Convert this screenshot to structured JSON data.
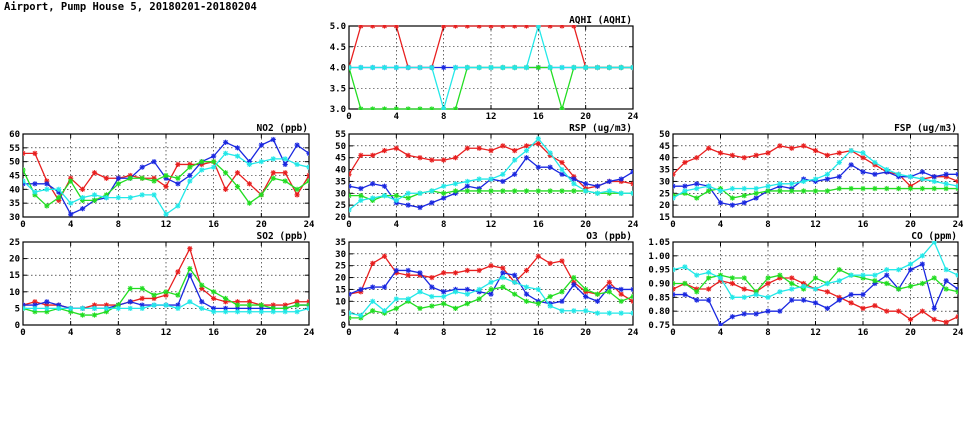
{
  "page": {
    "title": "Airport, Pump House 5, 20180201-20180204"
  },
  "colors": {
    "day1": "#e81f1f",
    "day2": "#1a28e0",
    "day3": "#22dd22",
    "day4": "#22e8e8"
  },
  "chart_data": [
    {
      "id": "aqhi",
      "type": "line",
      "title": "AQHI (AQHI)",
      "xlim": [
        0,
        24
      ],
      "xticks": [
        0,
        4,
        8,
        12,
        16,
        20,
        24
      ],
      "ylim": [
        3.0,
        5.0
      ],
      "yticks": [
        "3.0",
        "3.5",
        "4.0",
        "4.5",
        "5.0"
      ],
      "grid": true,
      "series": [
        {
          "color": "#e81f1f",
          "values": [
            4,
            5,
            5,
            5,
            5,
            4,
            4,
            4,
            5,
            5,
            5,
            5,
            5,
            5,
            5,
            5,
            5,
            5,
            5,
            5,
            4,
            4,
            4,
            4,
            4
          ]
        },
        {
          "color": "#1a28e0",
          "values": [
            4,
            4,
            4,
            4,
            4,
            4,
            4,
            4,
            4,
            4,
            4,
            4,
            4,
            4,
            4,
            4,
            4,
            4,
            4,
            4,
            4,
            4,
            4,
            4,
            4
          ]
        },
        {
          "color": "#22dd22",
          "values": [
            4,
            3,
            3,
            3,
            3,
            3,
            3,
            3,
            3,
            3,
            4,
            4,
            4,
            4,
            4,
            4,
            4,
            4,
            3,
            4,
            4,
            4,
            4,
            4,
            4
          ]
        },
        {
          "color": "#22e8e8",
          "values": [
            4,
            4,
            4,
            4,
            4,
            4,
            4,
            4,
            3,
            4,
            4,
            4,
            4,
            4,
            4,
            4,
            5,
            4,
            4,
            4,
            4,
            4,
            4,
            4,
            4
          ]
        }
      ]
    },
    {
      "id": "no2",
      "type": "line",
      "title": "NO2 (ppb)",
      "xlim": [
        0,
        24
      ],
      "xticks": [
        0,
        4,
        8,
        12,
        16,
        20,
        24
      ],
      "ylim": [
        30,
        60
      ],
      "yticks": [
        "30",
        "35",
        "40",
        "45",
        "50",
        "55",
        "60"
      ],
      "grid": true,
      "series": [
        {
          "color": "#e81f1f",
          "values": [
            53,
            53,
            43,
            36,
            44,
            40,
            46,
            44,
            44,
            45,
            44,
            44,
            41,
            49,
            49,
            49,
            50,
            40,
            46,
            42,
            38,
            46,
            46,
            38,
            45
          ]
        },
        {
          "color": "#1a28e0",
          "values": [
            42,
            42,
            42,
            39,
            31,
            33,
            36,
            37,
            44,
            44,
            48,
            50,
            44,
            42,
            45,
            50,
            52,
            57,
            55,
            50,
            56,
            58,
            49,
            56,
            53
          ]
        },
        {
          "color": "#22dd22",
          "values": [
            47,
            38,
            34,
            37,
            43,
            36,
            36,
            38,
            42,
            44,
            44,
            43,
            45,
            44,
            48,
            50,
            50,
            46,
            41,
            35,
            38,
            44,
            43,
            40,
            43
          ]
        },
        {
          "color": "#22e8e8",
          "values": [
            43,
            39,
            40,
            40,
            35,
            37,
            38,
            37,
            37,
            37,
            38,
            38,
            31,
            34,
            43,
            47,
            48,
            53,
            52,
            49,
            50,
            51,
            51,
            49,
            48
          ]
        }
      ]
    },
    {
      "id": "rsp",
      "type": "line",
      "title": "RSP (ug/m3)",
      "xlim": [
        0,
        24
      ],
      "xticks": [
        0,
        4,
        8,
        12,
        16,
        20,
        24
      ],
      "ylim": [
        20,
        55
      ],
      "yticks": [
        "20",
        "25",
        "30",
        "35",
        "40",
        "45",
        "50",
        "55"
      ],
      "grid": true,
      "series": [
        {
          "color": "#e81f1f",
          "values": [
            38,
            46,
            46,
            48,
            49,
            46,
            45,
            44,
            44,
            45,
            49,
            49,
            48,
            50,
            48,
            50,
            51,
            46,
            43,
            37,
            32,
            33,
            35,
            35,
            34
          ]
        },
        {
          "color": "#1a28e0",
          "values": [
            33,
            32,
            34,
            33,
            26,
            25,
            24,
            26,
            28,
            30,
            33,
            32,
            36,
            35,
            38,
            45,
            41,
            41,
            38,
            36,
            34,
            33,
            35,
            36,
            39
          ]
        },
        {
          "color": "#22dd22",
          "values": [
            29,
            29,
            27,
            29,
            29,
            28,
            30,
            31,
            30,
            31,
            31,
            31,
            31,
            31,
            31,
            31,
            31,
            31,
            31,
            31,
            31,
            30,
            30,
            30,
            30
          ]
        },
        {
          "color": "#22e8e8",
          "values": [
            23,
            27,
            28,
            29,
            27,
            30,
            30,
            31,
            33,
            34,
            35,
            36,
            36,
            38,
            44,
            48,
            53,
            47,
            40,
            34,
            31,
            30,
            31,
            30,
            30
          ]
        }
      ]
    },
    {
      "id": "fsp",
      "type": "line",
      "title": "FSP (ug/m3)",
      "xlim": [
        0,
        24
      ],
      "xticks": [
        0,
        4,
        8,
        12,
        16,
        20,
        24
      ],
      "ylim": [
        15,
        50
      ],
      "yticks": [
        "15",
        "20",
        "25",
        "30",
        "35",
        "40",
        "45",
        "50"
      ],
      "grid": true,
      "series": [
        {
          "color": "#e81f1f",
          "values": [
            33,
            38,
            40,
            44,
            42,
            41,
            40,
            41,
            42,
            45,
            44,
            45,
            43,
            41,
            42,
            43,
            40,
            37,
            34,
            33,
            28,
            31,
            32,
            32,
            30
          ]
        },
        {
          "color": "#1a28e0",
          "values": [
            28,
            28,
            29,
            28,
            21,
            20,
            21,
            23,
            26,
            28,
            27,
            31,
            30,
            31,
            32,
            37,
            34,
            33,
            34,
            32,
            32,
            34,
            32,
            33,
            33
          ]
        },
        {
          "color": "#22dd22",
          "values": [
            24,
            25,
            23,
            26,
            27,
            23,
            24,
            25,
            26,
            26,
            26,
            26,
            26,
            26,
            27,
            27,
            27,
            27,
            27,
            27,
            27,
            27,
            27,
            27,
            27
          ]
        },
        {
          "color": "#22e8e8",
          "values": [
            23,
            26,
            27,
            28,
            26,
            27,
            27,
            27,
            28,
            29,
            29,
            30,
            31,
            33,
            38,
            43,
            42,
            38,
            35,
            33,
            32,
            31,
            30,
            29,
            28
          ]
        }
      ]
    },
    {
      "id": "so2",
      "type": "line",
      "title": "SO2 (ppb)",
      "xlim": [
        0,
        24
      ],
      "xticks": [
        0,
        4,
        8,
        12,
        16,
        20,
        24
      ],
      "ylim": [
        0,
        25
      ],
      "yticks": [
        "0",
        "5",
        "10",
        "15",
        "20",
        "25"
      ],
      "grid": true,
      "series": [
        {
          "color": "#e81f1f",
          "values": [
            6,
            7,
            6,
            6,
            5,
            5,
            6,
            6,
            6,
            7,
            8,
            8,
            9,
            16,
            23,
            11,
            8,
            7,
            7,
            7,
            6,
            6,
            6,
            7,
            7
          ]
        },
        {
          "color": "#1a28e0",
          "values": [
            6,
            6,
            7,
            6,
            5,
            5,
            5,
            5,
            6,
            7,
            6,
            6,
            6,
            6,
            15,
            7,
            5,
            5,
            5,
            5,
            5,
            5,
            5,
            6,
            6
          ]
        },
        {
          "color": "#22dd22",
          "values": [
            5,
            4,
            4,
            5,
            4,
            3,
            3,
            4,
            6,
            11,
            11,
            9,
            10,
            9,
            17,
            12,
            10,
            8,
            6,
            6,
            6,
            5,
            5,
            6,
            6
          ]
        },
        {
          "color": "#22e8e8",
          "values": [
            5,
            5,
            5,
            5,
            5,
            5,
            5,
            5,
            5,
            5,
            5,
            6,
            6,
            5,
            7,
            5,
            4,
            4,
            4,
            4,
            4,
            4,
            4,
            4,
            5
          ]
        }
      ]
    },
    {
      "id": "o3",
      "type": "line",
      "title": "O3 (ppb)",
      "xlim": [
        0,
        24
      ],
      "xticks": [
        0,
        4,
        8,
        12,
        16,
        20,
        24
      ],
      "ylim": [
        0,
        35
      ],
      "yticks": [
        "0",
        "5",
        "10",
        "15",
        "20",
        "25",
        "30",
        "35"
      ],
      "grid": true,
      "series": [
        {
          "color": "#e81f1f",
          "values": [
            13,
            14,
            26,
            29,
            22,
            21,
            21,
            20,
            22,
            22,
            23,
            23,
            25,
            24,
            18,
            23,
            29,
            26,
            27,
            18,
            14,
            13,
            18,
            13,
            10
          ]
        },
        {
          "color": "#1a28e0",
          "values": [
            13,
            15,
            16,
            16,
            23,
            23,
            22,
            16,
            14,
            15,
            15,
            14,
            13,
            22,
            21,
            13,
            10,
            9,
            10,
            17,
            12,
            10,
            16,
            15,
            15
          ]
        },
        {
          "color": "#22dd22",
          "values": [
            3,
            3,
            6,
            5,
            7,
            10,
            7,
            8,
            9,
            7,
            9,
            11,
            15,
            16,
            13,
            10,
            9,
            12,
            14,
            20,
            15,
            13,
            14,
            10,
            12
          ]
        },
        {
          "color": "#22e8e8",
          "values": [
            5,
            4,
            10,
            6,
            11,
            11,
            14,
            12,
            12,
            14,
            13,
            15,
            18,
            20,
            18,
            16,
            15,
            8,
            6,
            6,
            6,
            5,
            5,
            5,
            5
          ]
        }
      ]
    },
    {
      "id": "co",
      "type": "line",
      "title": "CO (ppm)",
      "xlim": [
        0,
        24
      ],
      "xticks": [
        0,
        4,
        8,
        12,
        16,
        20,
        24
      ],
      "ylim": [
        0.75,
        1.05
      ],
      "yticks": [
        "0.75",
        "0.80",
        "0.85",
        "0.90",
        "0.95",
        "1.00",
        "1.05"
      ],
      "grid": true,
      "series": [
        {
          "color": "#e81f1f",
          "values": [
            0.88,
            0.9,
            0.88,
            0.88,
            0.91,
            0.9,
            0.88,
            0.87,
            0.9,
            0.92,
            0.92,
            0.9,
            0.88,
            0.87,
            0.85,
            0.83,
            0.81,
            0.82,
            0.8,
            0.8,
            0.77,
            0.8,
            0.77,
            0.76,
            0.78
          ]
        },
        {
          "color": "#1a28e0",
          "values": [
            0.86,
            0.86,
            0.84,
            0.84,
            0.75,
            0.78,
            0.79,
            0.79,
            0.8,
            0.8,
            0.84,
            0.84,
            0.83,
            0.81,
            0.84,
            0.86,
            0.86,
            0.9,
            0.93,
            0.88,
            0.95,
            0.97,
            0.81,
            0.91,
            0.88
          ]
        },
        {
          "color": "#22dd22",
          "values": [
            0.9,
            0.9,
            0.87,
            0.92,
            0.93,
            0.92,
            0.92,
            0.87,
            0.92,
            0.93,
            0.9,
            0.88,
            0.92,
            0.9,
            0.95,
            0.93,
            0.92,
            0.91,
            0.9,
            0.88,
            0.89,
            0.9,
            0.92,
            0.88,
            0.87
          ]
        },
        {
          "color": "#22e8e8",
          "values": [
            0.95,
            0.96,
            0.93,
            0.94,
            0.92,
            0.85,
            0.85,
            0.86,
            0.85,
            0.87,
            0.88,
            0.89,
            0.88,
            0.9,
            0.91,
            0.93,
            0.93,
            0.93,
            0.95,
            0.95,
            0.97,
            1.0,
            1.05,
            0.95,
            0.93
          ]
        }
      ]
    }
  ]
}
